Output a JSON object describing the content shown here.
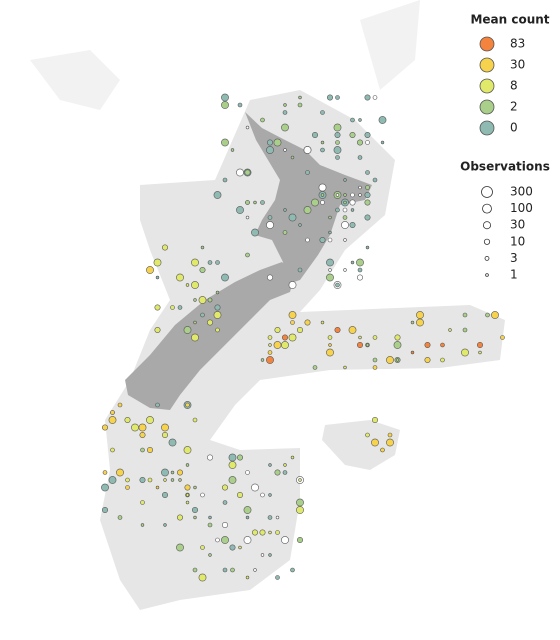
{
  "legend": {
    "mean_count": {
      "title": "Mean count",
      "items": [
        {
          "label": "83",
          "color": "#f4833d"
        },
        {
          "label": "30",
          "color": "#f7d24d"
        },
        {
          "label": "8",
          "color": "#e1e96b"
        },
        {
          "label": "2",
          "color": "#a9cf8b"
        },
        {
          "label": "0",
          "color": "#8fbab2"
        }
      ]
    },
    "observations": {
      "title": "Observations",
      "items": [
        "300",
        "100",
        "30",
        "10",
        "3",
        "1"
      ]
    }
  }
}
